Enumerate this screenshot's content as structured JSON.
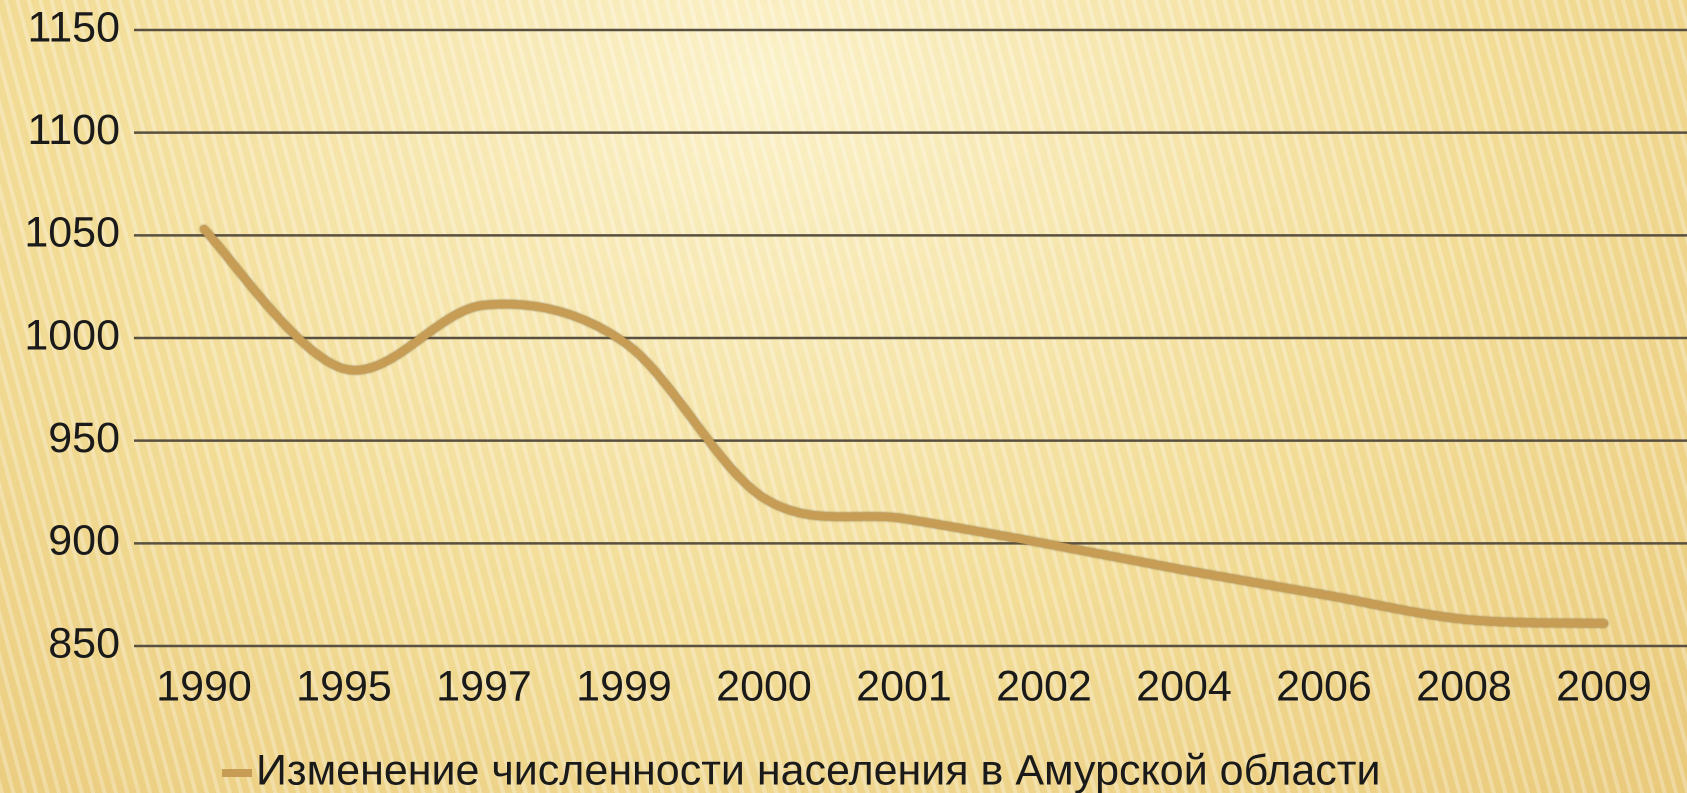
{
  "chart_data": {
    "type": "line",
    "categories": [
      "1990",
      "1995",
      "1997",
      "1999",
      "2000",
      "2001",
      "2002",
      "2004",
      "2006",
      "2008",
      "2009"
    ],
    "series": [
      {
        "name": "Изменение численности населения в Амурской области",
        "color": "#c79d55",
        "values": [
          1053,
          985,
          1016,
          998,
          922,
          912,
          900,
          887,
          875,
          863,
          861
        ]
      }
    ],
    "ylim": [
      850,
      1150
    ],
    "yticks": [
      850,
      900,
      950,
      1000,
      1050,
      1100,
      1150
    ],
    "grid": true,
    "smooth": true,
    "legend": "bottom"
  }
}
